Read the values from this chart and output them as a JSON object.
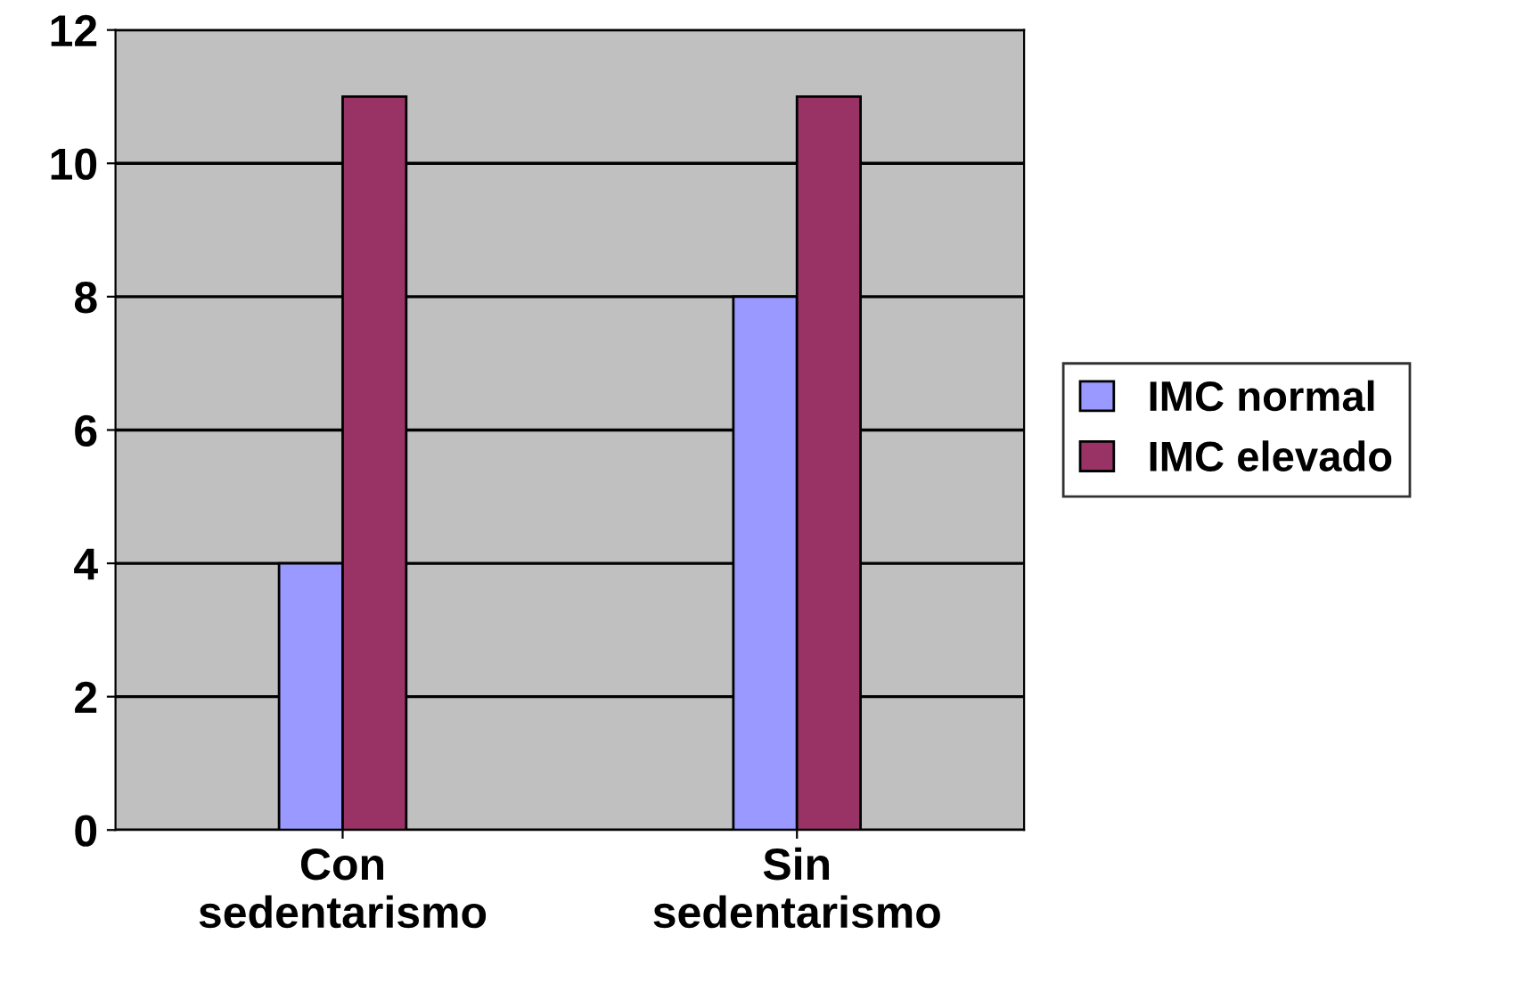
{
  "chart_data": {
    "type": "bar",
    "categories": [
      "Con\nsedentarismo",
      "Sin\nsedentarismo"
    ],
    "series": [
      {
        "name": "IMC normal",
        "color": "#9999ff",
        "values": [
          4,
          8
        ]
      },
      {
        "name": "IMC elevado",
        "color": "#993366",
        "values": [
          11,
          11
        ]
      }
    ],
    "ylim": [
      0,
      12
    ],
    "yticks": [
      0,
      2,
      4,
      6,
      8,
      10,
      12
    ],
    "grid": "y",
    "legend": "right"
  }
}
